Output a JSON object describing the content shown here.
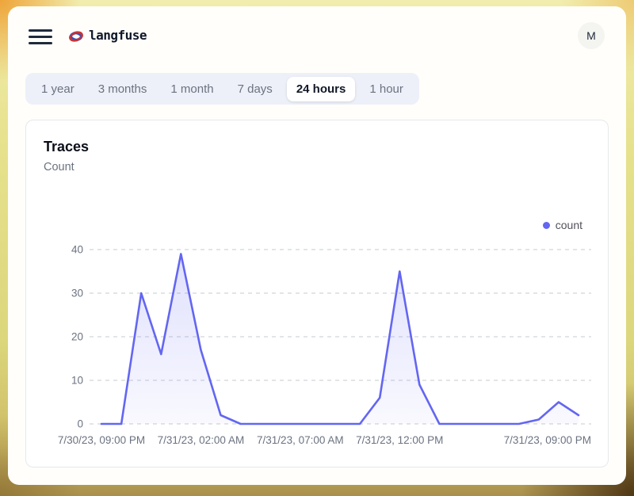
{
  "header": {
    "title": "langfuse",
    "avatar_initial": "M"
  },
  "tabs": {
    "items": [
      "1 year",
      "3 months",
      "1 month",
      "7 days",
      "24 hours",
      "1 hour"
    ],
    "selected": "24 hours"
  },
  "card": {
    "title": "Traces",
    "subtitle": "Count"
  },
  "legend": {
    "label": "count",
    "color": "#6366f1"
  },
  "colors": {
    "accent": "#6366f1",
    "grid_line": "#d1d5db",
    "axis_text": "#6b7280",
    "area_fill_top": "rgba(99,102,241,0.20)",
    "area_fill_bottom": "rgba(99,102,241,0.04)"
  },
  "chart_data": {
    "type": "area",
    "title": "Traces",
    "xlabel": "",
    "ylabel": "Count",
    "grid": "horizontal-dashed",
    "legend_position": "top-right",
    "ylim": [
      0,
      40
    ],
    "y_ticks": [
      0,
      10,
      20,
      30,
      40
    ],
    "x": [
      "7/30/23, 09:00 PM",
      "7/30/23, 10:00 PM",
      "7/30/23, 11:00 PM",
      "7/31/23, 12:00 AM",
      "7/31/23, 01:00 AM",
      "7/31/23, 02:00 AM",
      "7/31/23, 03:00 AM",
      "7/31/23, 04:00 AM",
      "7/31/23, 05:00 AM",
      "7/31/23, 06:00 AM",
      "7/31/23, 07:00 AM",
      "7/31/23, 08:00 AM",
      "7/31/23, 09:00 AM",
      "7/31/23, 10:00 AM",
      "7/31/23, 11:00 AM",
      "7/31/23, 12:00 PM",
      "7/31/23, 01:00 PM",
      "7/31/23, 02:00 PM",
      "7/31/23, 03:00 PM",
      "7/31/23, 04:00 PM",
      "7/31/23, 05:00 PM",
      "7/31/23, 06:00 PM",
      "7/31/23, 07:00 PM",
      "7/31/23, 08:00 PM",
      "7/31/23, 09:00 PM"
    ],
    "x_tick_labels": [
      {
        "index": 0,
        "label": "7/30/23, 09:00 PM"
      },
      {
        "index": 5,
        "label": "7/31/23, 02:00 AM"
      },
      {
        "index": 10,
        "label": "7/31/23, 07:00 AM"
      },
      {
        "index": 15,
        "label": "7/31/23, 12:00 PM"
      },
      {
        "index": 24,
        "label": "7/31/23, 09:00 PM"
      }
    ],
    "series": [
      {
        "name": "count",
        "color": "#6366f1",
        "values": [
          0,
          0,
          30,
          16,
          39,
          17,
          2,
          0,
          0,
          0,
          0,
          0,
          0,
          0,
          6,
          35,
          9,
          0,
          0,
          0,
          0,
          0,
          1,
          5,
          2
        ]
      }
    ]
  }
}
